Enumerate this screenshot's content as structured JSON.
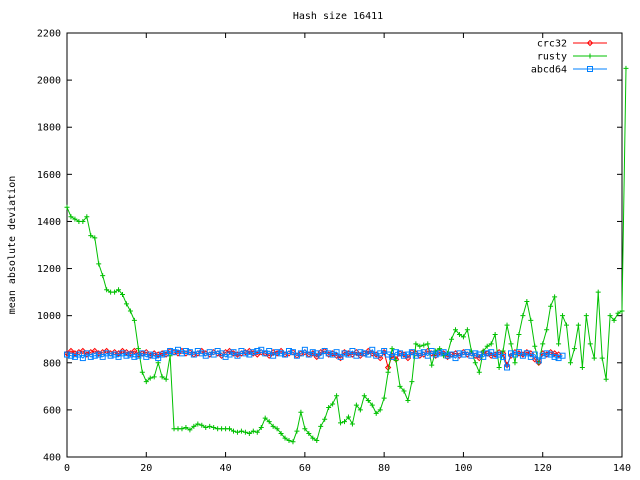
{
  "chart_data": {
    "type": "line",
    "title": "Hash size 16411",
    "xlabel": "",
    "ylabel": "mean absolute deviation",
    "xlim": [
      0,
      140
    ],
    "ylim": [
      400,
      2200
    ],
    "x_ticks": [
      0,
      20,
      40,
      60,
      80,
      100,
      120,
      140
    ],
    "y_ticks": [
      400,
      600,
      800,
      1000,
      1200,
      1400,
      1600,
      1800,
      2000,
      2200
    ],
    "grid": false,
    "legend_position": "top-right",
    "series": [
      {
        "name": "crc32",
        "color": "#ff0000",
        "marker": "diamond",
        "start_x": 0,
        "values": [
          840,
          850,
          840,
          845,
          850,
          835,
          845,
          850,
          840,
          845,
          850,
          840,
          845,
          840,
          850,
          845,
          840,
          850,
          835,
          840,
          845,
          830,
          840,
          835,
          840,
          835,
          850,
          845,
          840,
          850,
          840,
          845,
          835,
          840,
          850,
          840,
          835,
          845,
          840,
          830,
          845,
          850,
          840,
          835,
          840,
          845,
          850,
          840,
          835,
          845,
          840,
          830,
          845,
          840,
          850,
          835,
          840,
          845,
          830,
          840,
          845,
          835,
          840,
          825,
          845,
          850,
          835,
          840,
          830,
          820,
          845,
          840,
          835,
          845,
          830,
          840,
          850,
          840,
          835,
          820,
          845,
          780,
          830,
          815,
          840,
          835,
          820,
          845,
          840,
          830,
          835,
          850,
          840,
          830,
          845,
          840,
          825,
          835,
          840,
          830,
          845,
          835,
          840,
          830,
          820,
          845,
          840,
          830,
          835,
          845,
          840,
          790,
          830,
          845,
          840,
          835,
          845,
          840,
          815,
          800,
          840,
          835,
          845,
          840,
          835
        ]
      },
      {
        "name": "rusty",
        "color": "#00c000",
        "marker": "plus",
        "start_x": 0,
        "values": [
          1460,
          1420,
          1410,
          1400,
          1400,
          1420,
          1340,
          1330,
          1220,
          1170,
          1110,
          1100,
          1100,
          1110,
          1090,
          1050,
          1020,
          980,
          860,
          760,
          720,
          735,
          740,
          800,
          740,
          730,
          830,
          520,
          520,
          520,
          525,
          515,
          530,
          540,
          535,
          525,
          530,
          525,
          520,
          520,
          520,
          520,
          510,
          505,
          510,
          505,
          500,
          510,
          505,
          525,
          565,
          550,
          530,
          520,
          500,
          480,
          470,
          465,
          510,
          590,
          520,
          500,
          480,
          470,
          530,
          560,
          610,
          625,
          660,
          545,
          550,
          570,
          540,
          620,
          600,
          660,
          640,
          620,
          585,
          600,
          650,
          760,
          860,
          810,
          700,
          680,
          640,
          720,
          880,
          870,
          875,
          880,
          790,
          850,
          860,
          830,
          840,
          900,
          940,
          920,
          910,
          940,
          850,
          800,
          760,
          850,
          870,
          880,
          920,
          780,
          850,
          960,
          880,
          800,
          920,
          1000,
          1060,
          980,
          870,
          800,
          880,
          940,
          1040,
          1080,
          880,
          1000,
          960,
          800,
          860,
          960,
          780,
          1000,
          880,
          820,
          1100,
          820,
          730,
          1000,
          980,
          1010,
          1020,
          2050
        ]
      },
      {
        "name": "abcd64",
        "color": "#0080ff",
        "marker": "square",
        "start_x": 0,
        "values": [
          835,
          830,
          825,
          835,
          820,
          840,
          825,
          830,
          835,
          825,
          840,
          830,
          835,
          825,
          840,
          830,
          835,
          825,
          830,
          840,
          825,
          835,
          830,
          820,
          835,
          840,
          850,
          845,
          855,
          840,
          850,
          845,
          835,
          850,
          840,
          830,
          845,
          835,
          850,
          840,
          825,
          835,
          845,
          830,
          850,
          840,
          835,
          845,
          850,
          855,
          840,
          850,
          830,
          845,
          840,
          835,
          850,
          845,
          830,
          840,
          855,
          835,
          845,
          840,
          830,
          850,
          840,
          835,
          845,
          825,
          840,
          835,
          850,
          830,
          845,
          840,
          835,
          855,
          830,
          840,
          850,
          835,
          825,
          845,
          840,
          830,
          835,
          845,
          830,
          840,
          845,
          830,
          850,
          835,
          840,
          845,
          830,
          835,
          820,
          840,
          835,
          845,
          830,
          840,
          835,
          825,
          840,
          845,
          830,
          835,
          825,
          780,
          840,
          835,
          845,
          830,
          840,
          825,
          835,
          810,
          830,
          840,
          835,
          825,
          820,
          830
        ]
      }
    ]
  }
}
